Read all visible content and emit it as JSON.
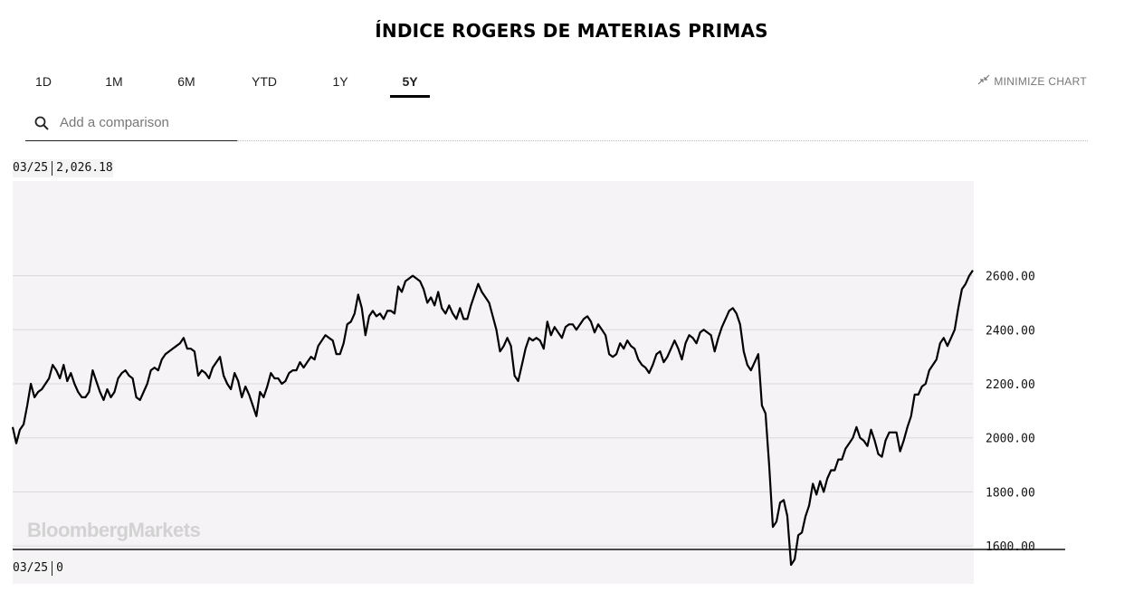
{
  "page_title": "ÍNDICE ROGERS DE  MATERIAS PRIMAS",
  "tabs": [
    {
      "label": "1D",
      "active": false
    },
    {
      "label": "1M",
      "active": false
    },
    {
      "label": "6M",
      "active": false
    },
    {
      "label": "YTD",
      "active": false
    },
    {
      "label": "1Y",
      "active": false
    },
    {
      "label": "5Y",
      "active": true
    }
  ],
  "minimize_label": "MINIMIZE CHART",
  "search": {
    "placeholder": "Add a comparison"
  },
  "readout_top": {
    "date": "03/25",
    "value": "2,026.18"
  },
  "readout_bottom": {
    "date": "03/25",
    "value": "0"
  },
  "watermark": "BloombergMarkets",
  "colors": {
    "line": "#000000",
    "highlight": "#f5f500",
    "plot_bg": "#f6f3f6",
    "grid": "#d9d9d9"
  },
  "chart_data": {
    "type": "line",
    "title": "ÍNDICE ROGERS DE  MATERIAS PRIMAS",
    "range": "5Y",
    "y_ticks": [
      "2600.00",
      "2400.00",
      "2200.00",
      "2000.00",
      "1800.00",
      "1600.00"
    ],
    "ylim": [
      1420,
      2720
    ],
    "grid": true,
    "highlight": {
      "from_index": 279,
      "to_index": 293,
      "color": "#f5f500"
    },
    "series": [
      {
        "values": [
          2040,
          1980,
          2030,
          2050,
          2120,
          2200,
          2150,
          2170,
          2180,
          2200,
          2220,
          2270,
          2250,
          2220,
          2270,
          2210,
          2240,
          2200,
          2170,
          2150,
          2150,
          2170,
          2250,
          2210,
          2170,
          2140,
          2180,
          2150,
          2170,
          2220,
          2240,
          2250,
          2230,
          2220,
          2150,
          2140,
          2170,
          2200,
          2250,
          2260,
          2250,
          2290,
          2310,
          2320,
          2330,
          2340,
          2350,
          2370,
          2330,
          2330,
          2320,
          2230,
          2250,
          2240,
          2220,
          2260,
          2280,
          2300,
          2230,
          2200,
          2180,
          2240,
          2210,
          2150,
          2190,
          2160,
          2120,
          2080,
          2170,
          2150,
          2190,
          2240,
          2220,
          2220,
          2200,
          2210,
          2240,
          2250,
          2250,
          2280,
          2260,
          2280,
          2300,
          2290,
          2340,
          2360,
          2380,
          2370,
          2360,
          2310,
          2310,
          2350,
          2420,
          2430,
          2460,
          2530,
          2480,
          2380,
          2450,
          2470,
          2450,
          2460,
          2440,
          2470,
          2470,
          2460,
          2560,
          2540,
          2580,
          2590,
          2600,
          2590,
          2580,
          2550,
          2500,
          2520,
          2490,
          2540,
          2480,
          2460,
          2490,
          2460,
          2440,
          2480,
          2440,
          2440,
          2490,
          2530,
          2570,
          2540,
          2520,
          2500,
          2450,
          2400,
          2320,
          2340,
          2370,
          2340,
          2230,
          2210,
          2270,
          2330,
          2370,
          2360,
          2370,
          2360,
          2330,
          2430,
          2380,
          2410,
          2390,
          2370,
          2410,
          2420,
          2420,
          2400,
          2420,
          2440,
          2450,
          2430,
          2390,
          2420,
          2400,
          2380,
          2310,
          2300,
          2310,
          2350,
          2330,
          2360,
          2340,
          2330,
          2290,
          2270,
          2260,
          2240,
          2270,
          2310,
          2320,
          2280,
          2300,
          2330,
          2360,
          2330,
          2290,
          2350,
          2380,
          2370,
          2350,
          2390,
          2400,
          2390,
          2380,
          2320,
          2370,
          2410,
          2440,
          2470,
          2480,
          2460,
          2420,
          2320,
          2270,
          2250,
          2280,
          2310,
          2120,
          2090,
          1900,
          1670,
          1690,
          1760,
          1770,
          1710,
          1530,
          1550,
          1640,
          1650,
          1710,
          1750,
          1830,
          1790,
          1840,
          1800,
          1850,
          1880,
          1880,
          1920,
          1920,
          1960,
          1980,
          2000,
          2040,
          2000,
          1990,
          1970,
          2030,
          1990,
          1940,
          1930,
          1990,
          2020,
          2020,
          2020,
          1950,
          1990,
          2040,
          2080,
          2160,
          2160,
          2190,
          2200,
          2250,
          2270,
          2290,
          2350,
          2370,
          2340,
          2370,
          2400,
          2480,
          2550,
          2570,
          2600,
          2620
        ]
      }
    ]
  }
}
